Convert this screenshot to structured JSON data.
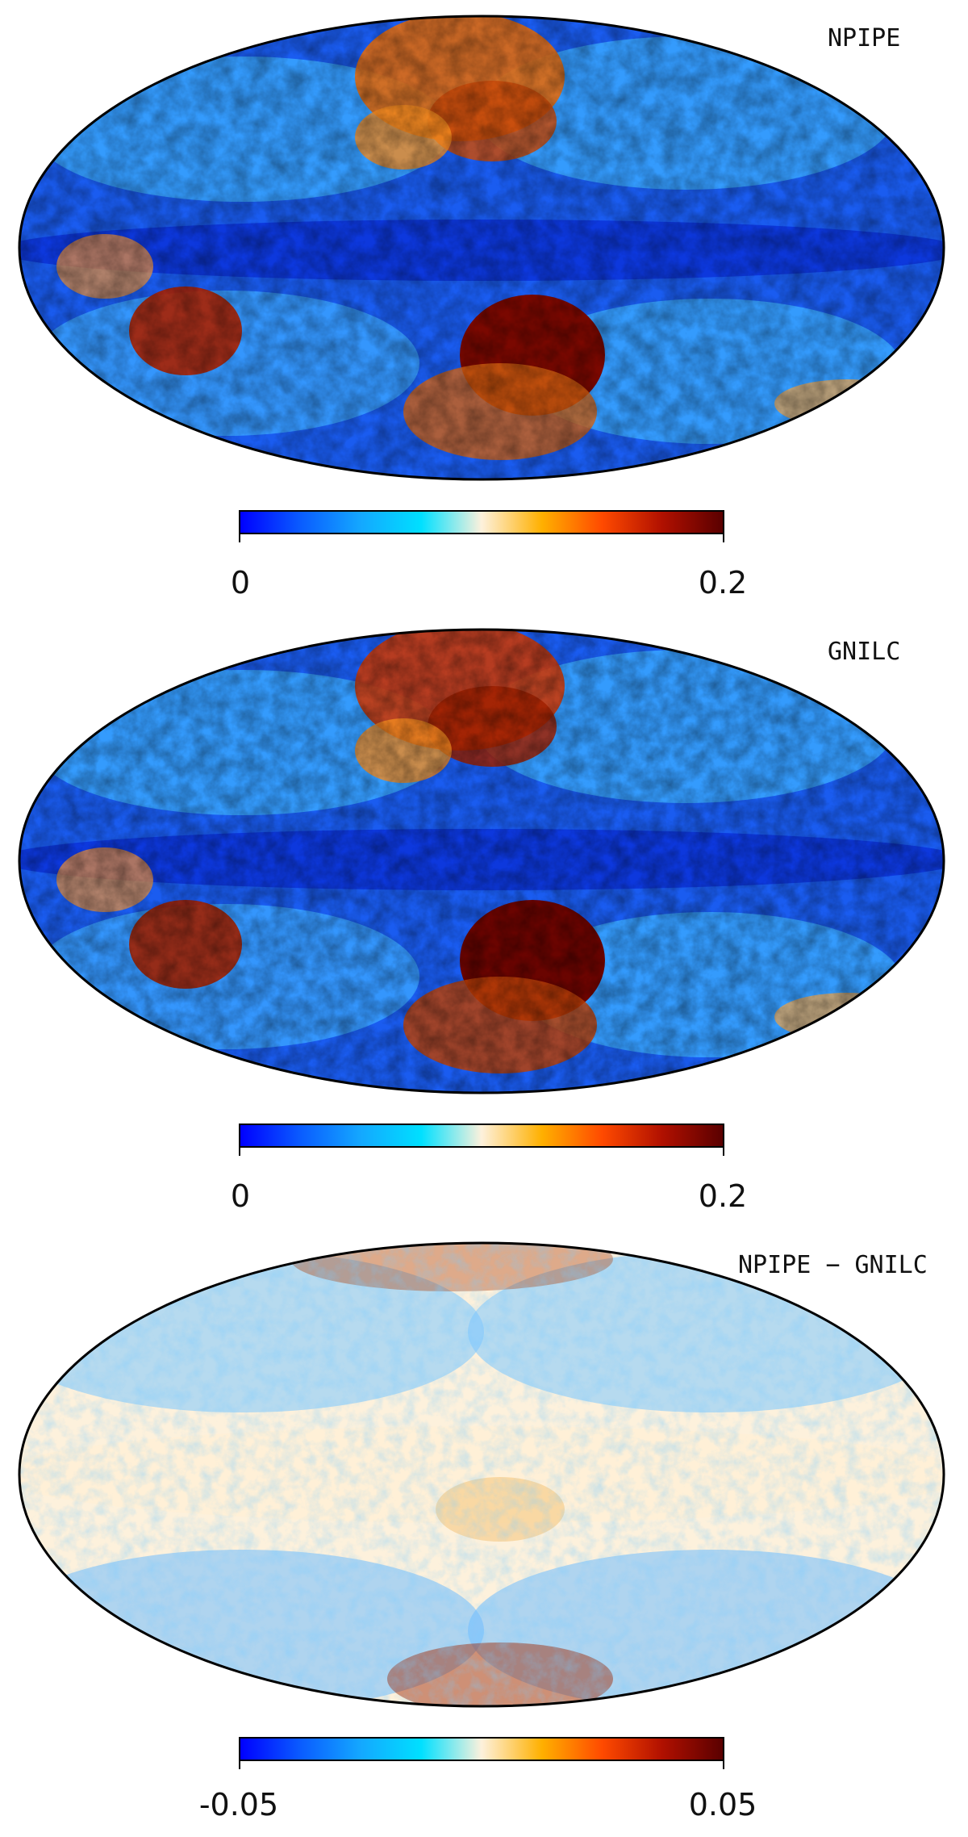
{
  "panels": [
    {
      "title": "NPIPE",
      "kind": "intensity",
      "cb_min_label": "0",
      "cb_max_label": "0.2"
    },
    {
      "title": "GNILC",
      "kind": "intensity",
      "cb_min_label": "0",
      "cb_max_label": "0.2"
    },
    {
      "title": "NPIPE − GNILC",
      "kind": "difference",
      "cb_min_label": "-0.05",
      "cb_max_label": "0.05"
    }
  ],
  "colormap": [
    "#0000ff",
    "#0a5cff",
    "#14a8ff",
    "#00e0ff",
    "#fdf1dc",
    "#ffb000",
    "#ff4a00",
    "#b01000",
    "#5a0000"
  ]
}
